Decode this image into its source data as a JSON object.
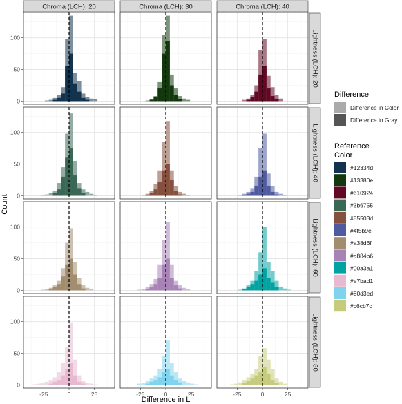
{
  "chart_data": {
    "type": "bar",
    "xlabel": "Difference in L",
    "ylabel": "Count",
    "xlim": [
      -45,
      45
    ],
    "ylim": [
      -5,
      140
    ],
    "x_ticks": [
      -25,
      0,
      25
    ],
    "x_tick_labels": [
      "-25",
      "0",
      "25"
    ],
    "y_ticks": [
      0,
      50,
      100
    ],
    "y_tick_labels": [
      "0",
      "50",
      "100"
    ],
    "grid": true,
    "vline_x": 0,
    "column_strips": [
      "Chroma (LCH): 20",
      "Chroma (LCH): 30",
      "Chroma (LCH): 40"
    ],
    "row_strips": [
      "Lightness (LCH): 20",
      "Lightness (LCH): 40",
      "Lightness (LCH): 60",
      "Lightness (LCH): 80"
    ],
    "legend": {
      "position": "right",
      "difference_title": "Difference",
      "difference_items": [
        {
          "label": "Difference in Color",
          "color": "#aaaaaa"
        },
        {
          "label": "Difference in Gray",
          "color": "#555555"
        }
      ],
      "reference_title_lines": [
        "Reference",
        "Color"
      ],
      "reference_items": [
        "#12334d",
        "#13380e",
        "#610924",
        "#3b6755",
        "#85503d",
        "#4f5b9e",
        "#a38d6f",
        "#a884b6",
        "#00a3a1",
        "#e7bad1",
        "#80d3ed",
        "#c6cb7c"
      ]
    },
    "bin_centers": [
      -38,
      -34,
      -30,
      -26,
      -22,
      -18,
      -14,
      -10,
      -6,
      -2,
      2,
      6,
      10,
      14,
      18,
      22,
      26,
      30,
      34,
      38
    ],
    "panels": [
      {
        "row": 0,
        "col": 0,
        "color": "#12334d",
        "color_counts": [
          0,
          0,
          0,
          0,
          1,
          2,
          5,
          10,
          22,
          98,
          135,
          45,
          32,
          12,
          6,
          4,
          3,
          0,
          0,
          0
        ],
        "gray_counts": [
          0,
          0,
          0,
          0,
          0,
          0,
          2,
          5,
          12,
          55,
          75,
          28,
          15,
          5,
          2,
          0,
          0,
          0,
          0,
          0
        ]
      },
      {
        "row": 0,
        "col": 1,
        "color": "#13380e",
        "color_counts": [
          0,
          0,
          0,
          0,
          0,
          1,
          3,
          8,
          30,
          105,
          135,
          42,
          20,
          8,
          4,
          2,
          0,
          0,
          0,
          0
        ],
        "gray_counts": [
          0,
          0,
          0,
          0,
          0,
          0,
          2,
          6,
          20,
          75,
          95,
          25,
          10,
          3,
          0,
          0,
          0,
          0,
          0,
          0
        ]
      },
      {
        "row": 0,
        "col": 2,
        "color": "#610924",
        "color_counts": [
          0,
          0,
          0,
          0,
          0,
          2,
          4,
          10,
          25,
          80,
          98,
          40,
          22,
          10,
          4,
          0,
          0,
          0,
          0,
          0
        ],
        "gray_counts": [
          0,
          0,
          0,
          0,
          0,
          0,
          2,
          6,
          15,
          42,
          55,
          20,
          8,
          3,
          0,
          0,
          0,
          0,
          0,
          0
        ]
      },
      {
        "row": 1,
        "col": 0,
        "color": "#3b6755",
        "color_counts": [
          0,
          0,
          0,
          1,
          2,
          4,
          8,
          20,
          45,
          98,
          130,
          55,
          20,
          10,
          6,
          3,
          1,
          0,
          0,
          0
        ],
        "gray_counts": [
          0,
          0,
          0,
          0,
          0,
          0,
          4,
          10,
          30,
          60,
          75,
          32,
          12,
          4,
          0,
          0,
          0,
          0,
          0,
          0
        ]
      },
      {
        "row": 1,
        "col": 1,
        "color": "#85503d",
        "color_counts": [
          0,
          0,
          0,
          0,
          1,
          3,
          7,
          18,
          40,
          85,
          118,
          40,
          15,
          6,
          3,
          1,
          0,
          0,
          0,
          0
        ],
        "gray_counts": [
          0,
          0,
          0,
          0,
          0,
          1,
          4,
          10,
          22,
          40,
          50,
          25,
          8,
          2,
          0,
          0,
          0,
          0,
          0,
          0
        ]
      },
      {
        "row": 1,
        "col": 2,
        "color": "#4f5b9e",
        "color_counts": [
          0,
          0,
          0,
          0,
          1,
          3,
          6,
          12,
          30,
          75,
          98,
          35,
          15,
          6,
          3,
          1,
          0,
          0,
          0,
          0
        ],
        "gray_counts": [
          0,
          0,
          0,
          0,
          0,
          1,
          3,
          6,
          15,
          30,
          40,
          15,
          6,
          2,
          0,
          0,
          0,
          0,
          0,
          0
        ]
      },
      {
        "row": 2,
        "col": 0,
        "color": "#a38d6f",
        "color_counts": [
          0,
          0,
          0,
          1,
          2,
          4,
          8,
          15,
          35,
          75,
          98,
          45,
          20,
          8,
          4,
          2,
          0,
          0,
          0,
          0
        ],
        "gray_counts": [
          0,
          0,
          0,
          0,
          0,
          2,
          5,
          10,
          22,
          40,
          50,
          25,
          10,
          3,
          0,
          0,
          0,
          0,
          0,
          0
        ]
      },
      {
        "row": 2,
        "col": 1,
        "color": "#a884b6",
        "color_counts": [
          0,
          0,
          0,
          1,
          2,
          5,
          10,
          18,
          40,
          80,
          108,
          40,
          15,
          8,
          4,
          2,
          0,
          0,
          0,
          0
        ],
        "gray_counts": [
          0,
          0,
          0,
          0,
          0,
          2,
          5,
          10,
          20,
          40,
          50,
          20,
          8,
          3,
          0,
          0,
          0,
          0,
          0,
          0
        ]
      },
      {
        "row": 2,
        "col": 2,
        "color": "#00a3a1",
        "color_counts": [
          0,
          0,
          0,
          0,
          1,
          3,
          8,
          15,
          30,
          60,
          100,
          45,
          30,
          15,
          6,
          3,
          1,
          0,
          0,
          0
        ],
        "gray_counts": [
          0,
          0,
          0,
          0,
          0,
          2,
          5,
          10,
          15,
          25,
          35,
          20,
          12,
          5,
          0,
          0,
          0,
          0,
          0,
          0
        ]
      },
      {
        "row": 3,
        "col": 0,
        "color": "#e7bad1",
        "color_counts": [
          0,
          1,
          2,
          3,
          5,
          8,
          12,
          20,
          35,
          60,
          98,
          40,
          15,
          6,
          3,
          2,
          1,
          0,
          0,
          0
        ],
        "gray_counts": [
          0,
          0,
          0,
          0,
          0,
          2,
          5,
          8,
          15,
          25,
          35,
          15,
          5,
          2,
          0,
          0,
          0,
          0,
          0,
          0
        ]
      },
      {
        "row": 3,
        "col": 1,
        "color": "#80d3ed",
        "color_counts": [
          0,
          0,
          0,
          2,
          3,
          6,
          10,
          15,
          25,
          45,
          70,
          35,
          20,
          10,
          6,
          4,
          2,
          1,
          0,
          0
        ],
        "gray_counts": [
          0,
          0,
          0,
          0,
          0,
          2,
          5,
          8,
          12,
          20,
          25,
          15,
          8,
          4,
          0,
          0,
          0,
          0,
          0,
          0
        ]
      },
      {
        "row": 3,
        "col": 2,
        "color": "#c6cb7c",
        "color_counts": [
          0,
          0,
          1,
          2,
          4,
          8,
          12,
          18,
          25,
          45,
          58,
          40,
          25,
          10,
          5,
          2,
          0,
          0,
          0,
          0
        ],
        "gray_counts": [
          0,
          0,
          0,
          0,
          0,
          3,
          6,
          10,
          15,
          20,
          28,
          18,
          8,
          3,
          0,
          0,
          0,
          0,
          0,
          0
        ]
      }
    ]
  }
}
